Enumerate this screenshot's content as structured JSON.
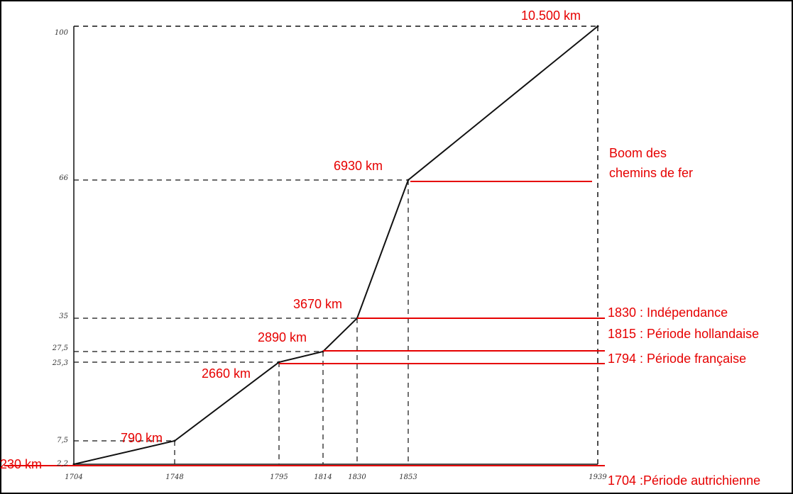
{
  "chart_data": {
    "type": "line",
    "title": "",
    "xlabel": "",
    "ylabel": "",
    "x": [
      1704,
      1748,
      1795,
      1814,
      1830,
      1853,
      1939
    ],
    "values": [
      2.2,
      7.5,
      25.3,
      27.5,
      35,
      66,
      100
    ],
    "xlim": [
      1704,
      1939
    ],
    "ylim": [
      2.2,
      100
    ],
    "x_tick_labels": [
      "1704",
      "1748",
      "1795",
      "1814",
      "1830",
      "1853",
      "1939"
    ],
    "y_ticks": [
      2.2,
      7.5,
      25.3,
      27.5,
      35,
      66,
      100
    ],
    "y_tick_labels": [
      "2,2",
      "7,5",
      "25,3",
      "27,5",
      "35",
      "66",
      "100"
    ],
    "point_labels": [
      "230 km",
      "790 km",
      "2660 km",
      "2890 km",
      "3670 km",
      "6930 km",
      "10.500 km"
    ],
    "period_lines": [
      {
        "y": 2.2,
        "label": "1704 :Période autrichienne"
      },
      {
        "y": 25.3,
        "label": "1794 : Période française"
      },
      {
        "y": 27.5,
        "label": "1815 : Période hollandaise"
      },
      {
        "y": 35,
        "label": "1830 : Indépendance"
      },
      {
        "y": 66,
        "label_lines": [
          "Boom des",
          "chemins de fer"
        ]
      }
    ],
    "colors": {
      "line": "#111111",
      "annotation": "#e60000",
      "dashed": "#111111"
    }
  }
}
